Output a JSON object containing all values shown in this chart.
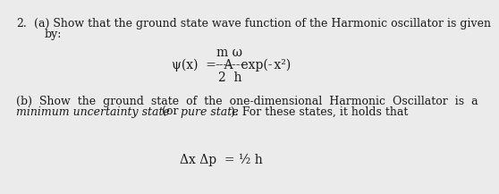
{
  "background_color": "#ebebeb",
  "text_color": "#1a1a1a",
  "font_size": 9,
  "line1": "2.   (a) Show that the ground state wave function of the Harmonic oscillator is given",
  "line2": "          by:",
  "formula_mw": "m ω",
  "formula_main": "ψ(x)  =  A  exp(-  -------  x²)",
  "formula_denom": "2  h",
  "partb_line1": "(b)  Show  the  ground  state  of  the  one-dimensional  Harmonic  Oscillator  is  a",
  "partb_line2_italic": "minimum uncertainty state",
  "partb_line2_normal1": " (or ",
  "partb_line2_italic2": "pure state",
  "partb_line2_normal2": "). For these states, it holds that",
  "formula2": "Δx Δp  = ½ h"
}
